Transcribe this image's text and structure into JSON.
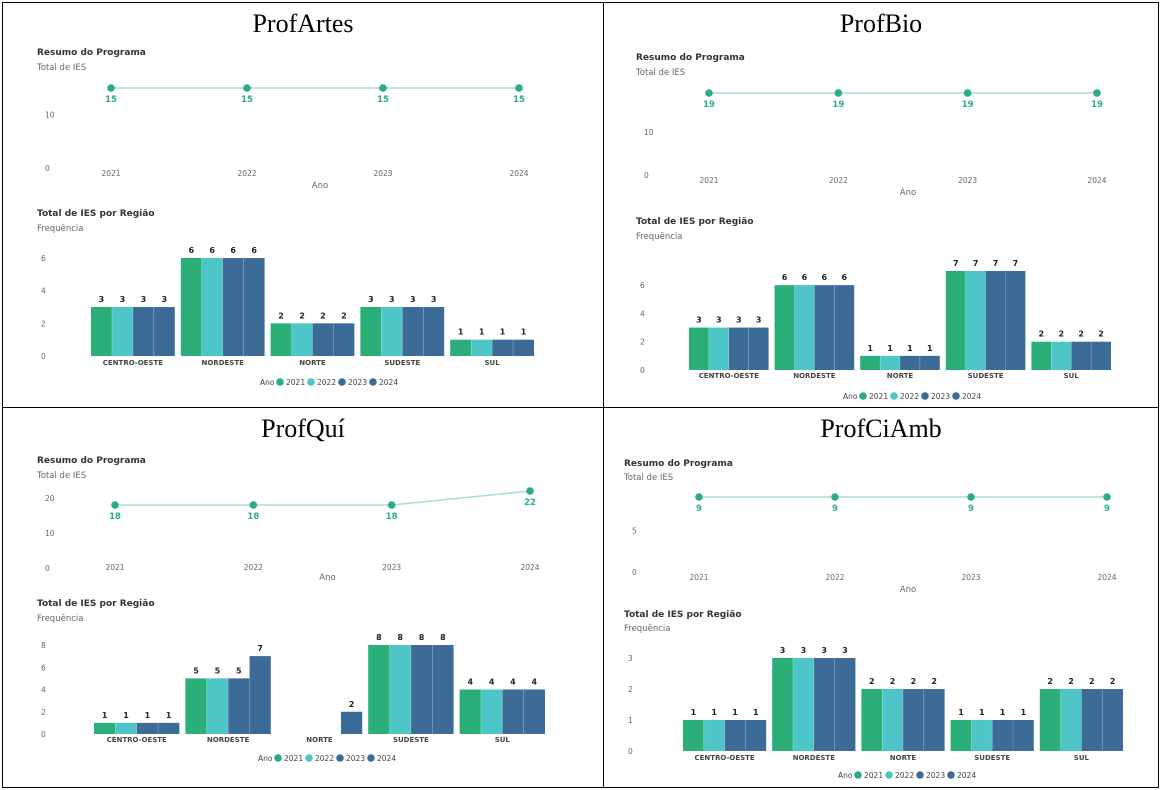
{
  "colors": {
    "2021": "#2aaf78",
    "2022": "#4ec6c8",
    "2023": "#3b6b96",
    "2024": "#3b6b96",
    "line": "#2aaf78",
    "line_band": "#a8ddd0",
    "axis_text": "#666666",
    "title_text": "#333333"
  },
  "panels": [
    {
      "title": "ProfArtes",
      "summary_title": "Resumo do Programa",
      "summary_subtitle": "Total de IES",
      "region_title": "Total de IES por Região",
      "region_subtitle": "Frequência",
      "legend_title": "Ano",
      "xaxis_label": "Ano"
    },
    {
      "title": "ProfBio",
      "summary_title": "Resumo do Programa",
      "summary_subtitle": "Total de IES",
      "region_title": "Total de IES por Região",
      "region_subtitle": "Frequência",
      "legend_title": "Ano",
      "xaxis_label": "Ano"
    },
    {
      "title": "ProfQuí",
      "summary_title": "Resumo do Programa",
      "summary_subtitle": "Total de IES",
      "region_title": "Total de IES por Região",
      "region_subtitle": "Frequência",
      "legend_title": "Ano",
      "xaxis_label": "Ano"
    },
    {
      "title": "ProfCiAmb",
      "summary_title": "Resumo do Programa",
      "summary_subtitle": "Total de IES",
      "region_title": "Total de IES por Região",
      "region_subtitle": "Frequência",
      "legend_title": "Ano",
      "xaxis_label": "Ano"
    }
  ],
  "chart_data": [
    {
      "panel": "ProfArtes",
      "type": "line",
      "title": "Resumo do Programa",
      "subtitle": "Total de IES",
      "xlabel": "Ano",
      "x": [
        "2021",
        "2022",
        "2023",
        "2024"
      ],
      "values": [
        15,
        15,
        15,
        15
      ],
      "ylim": [
        0,
        15
      ],
      "yticks": [
        0,
        10
      ]
    },
    {
      "panel": "ProfArtes",
      "type": "bar",
      "title": "Total de IES por Região",
      "subtitle": "Frequência",
      "categories": [
        "CENTRO-OESTE",
        "NORDESTE",
        "NORTE",
        "SUDESTE",
        "SUL"
      ],
      "ylim": [
        0,
        6
      ],
      "yticks": [
        0,
        2,
        4,
        6
      ],
      "legend_title": "Ano",
      "series": [
        {
          "name": "2021",
          "values": [
            3,
            6,
            2,
            3,
            1
          ]
        },
        {
          "name": "2022",
          "values": [
            3,
            6,
            2,
            3,
            1
          ]
        },
        {
          "name": "2023",
          "values": [
            3,
            6,
            2,
            3,
            1
          ]
        },
        {
          "name": "2024",
          "values": [
            3,
            6,
            2,
            3,
            1
          ]
        }
      ]
    },
    {
      "panel": "ProfBio",
      "type": "line",
      "title": "Resumo do Programa",
      "subtitle": "Total de IES",
      "xlabel": "Ano",
      "x": [
        "2021",
        "2022",
        "2023",
        "2024"
      ],
      "values": [
        19,
        19,
        19,
        19
      ],
      "ylim": [
        0,
        19
      ],
      "yticks": [
        0,
        10
      ]
    },
    {
      "panel": "ProfBio",
      "type": "bar",
      "title": "Total de IES por Região",
      "subtitle": "Frequência",
      "categories": [
        "CENTRO-OESTE",
        "NORDESTE",
        "NORTE",
        "SUDESTE",
        "SUL"
      ],
      "ylim": [
        0,
        7
      ],
      "yticks": [
        0,
        2,
        4,
        6
      ],
      "legend_title": "Ano",
      "series": [
        {
          "name": "2021",
          "values": [
            3,
            6,
            1,
            7,
            2
          ]
        },
        {
          "name": "2022",
          "values": [
            3,
            6,
            1,
            7,
            2
          ]
        },
        {
          "name": "2023",
          "values": [
            3,
            6,
            1,
            7,
            2
          ]
        },
        {
          "name": "2024",
          "values": [
            3,
            6,
            1,
            7,
            2
          ]
        }
      ]
    },
    {
      "panel": "ProfQuí",
      "type": "line",
      "title": "Resumo do Programa",
      "subtitle": "Total de IES",
      "xlabel": "Ano",
      "x": [
        "2021",
        "2022",
        "2023",
        "2024"
      ],
      "values": [
        18,
        18,
        18,
        22
      ],
      "ylim": [
        0,
        22
      ],
      "yticks": [
        0,
        10,
        20
      ]
    },
    {
      "panel": "ProfQuí",
      "type": "bar",
      "title": "Total de IES por Região",
      "subtitle": "Frequência",
      "categories": [
        "CENTRO-OESTE",
        "NORDESTE",
        "NORTE",
        "SUDESTE",
        "SUL"
      ],
      "ylim": [
        0,
        8
      ],
      "yticks": [
        0,
        2,
        4,
        6,
        8
      ],
      "legend_title": "Ano",
      "series": [
        {
          "name": "2021",
          "values": [
            1,
            5,
            null,
            8,
            4
          ]
        },
        {
          "name": "2022",
          "values": [
            1,
            5,
            null,
            8,
            4
          ]
        },
        {
          "name": "2023",
          "values": [
            1,
            5,
            null,
            8,
            4
          ]
        },
        {
          "name": "2024",
          "values": [
            1,
            7,
            2,
            8,
            4
          ]
        }
      ]
    },
    {
      "panel": "ProfCiAmb",
      "type": "line",
      "title": "Resumo do Programa",
      "subtitle": "Total de IES",
      "xlabel": "Ano",
      "x": [
        "2021",
        "2022",
        "2023",
        "2024"
      ],
      "values": [
        9,
        9,
        9,
        9
      ],
      "ylim": [
        0,
        9
      ],
      "yticks": [
        0,
        5
      ]
    },
    {
      "panel": "ProfCiAmb",
      "type": "bar",
      "title": "Total de IES por Região",
      "subtitle": "Frequência",
      "categories": [
        "CENTRO-OESTE",
        "NORDESTE",
        "NORTE",
        "SUDESTE",
        "SUL"
      ],
      "ylim": [
        0,
        3
      ],
      "yticks": [
        0,
        1,
        2,
        3
      ],
      "legend_title": "Ano",
      "series": [
        {
          "name": "2021",
          "values": [
            1,
            3,
            2,
            1,
            2
          ]
        },
        {
          "name": "2022",
          "values": [
            1,
            3,
            2,
            1,
            2
          ]
        },
        {
          "name": "2023",
          "values": [
            1,
            3,
            2,
            1,
            2
          ]
        },
        {
          "name": "2024",
          "values": [
            1,
            3,
            2,
            1,
            2
          ]
        }
      ]
    }
  ]
}
